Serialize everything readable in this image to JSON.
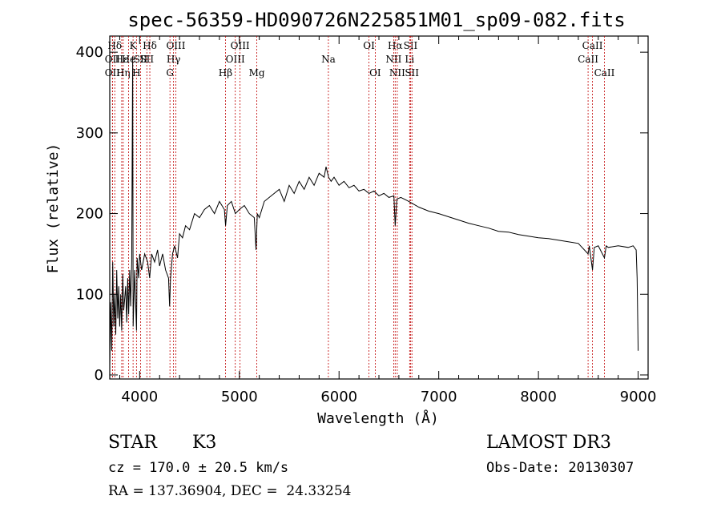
{
  "chart_data": {
    "type": "line",
    "title": "spec-56359-HD090726N225851M01_sp09-082.fits",
    "xlabel": "Wavelength (Å)",
    "ylabel": "Flux (relative)",
    "xlim": [
      3700,
      9100
    ],
    "ylim": [
      -5,
      420
    ],
    "x_ticks": [
      4000,
      5000,
      6000,
      7000,
      8000,
      9000
    ],
    "y_ticks": [
      0,
      100,
      200,
      300,
      400
    ],
    "grid": false,
    "series": [
      {
        "name": "flux",
        "points": [
          [
            3700,
            10
          ],
          [
            3710,
            90
          ],
          [
            3720,
            30
          ],
          [
            3730,
            140
          ],
          [
            3740,
            60
          ],
          [
            3750,
            100
          ],
          [
            3760,
            50
          ],
          [
            3770,
            130
          ],
          [
            3780,
            70
          ],
          [
            3790,
            110
          ],
          [
            3800,
            60
          ],
          [
            3810,
            100
          ],
          [
            3820,
            55
          ],
          [
            3830,
            125
          ],
          [
            3840,
            80
          ],
          [
            3850,
            95
          ],
          [
            3860,
            110
          ],
          [
            3870,
            65
          ],
          [
            3880,
            120
          ],
          [
            3890,
            75
          ],
          [
            3900,
            130
          ],
          [
            3910,
            85
          ],
          [
            3920,
            140
          ],
          [
            3930,
            395
          ],
          [
            3935,
            60
          ],
          [
            3950,
            130
          ],
          [
            3968,
            55
          ],
          [
            3975,
            145
          ],
          [
            3990,
            120
          ],
          [
            4000,
            150
          ],
          [
            4020,
            130
          ],
          [
            4050,
            150
          ],
          [
            4080,
            140
          ],
          [
            4100,
            120
          ],
          [
            4120,
            150
          ],
          [
            4150,
            140
          ],
          [
            4180,
            155
          ],
          [
            4200,
            135
          ],
          [
            4230,
            150
          ],
          [
            4260,
            130
          ],
          [
            4290,
            120
          ],
          [
            4300,
            85
          ],
          [
            4310,
            120
          ],
          [
            4330,
            150
          ],
          [
            4350,
            160
          ],
          [
            4380,
            145
          ],
          [
            4400,
            175
          ],
          [
            4430,
            170
          ],
          [
            4460,
            185
          ],
          [
            4500,
            180
          ],
          [
            4550,
            200
          ],
          [
            4600,
            195
          ],
          [
            4650,
            205
          ],
          [
            4700,
            210
          ],
          [
            4750,
            200
          ],
          [
            4800,
            215
          ],
          [
            4850,
            205
          ],
          [
            4862,
            185
          ],
          [
            4880,
            210
          ],
          [
            4920,
            215
          ],
          [
            4960,
            200
          ],
          [
            5000,
            205
          ],
          [
            5050,
            210
          ],
          [
            5100,
            200
          ],
          [
            5150,
            195
          ],
          [
            5167,
            155
          ],
          [
            5180,
            200
          ],
          [
            5200,
            195
          ],
          [
            5250,
            215
          ],
          [
            5300,
            220
          ],
          [
            5350,
            225
          ],
          [
            5400,
            230
          ],
          [
            5450,
            215
          ],
          [
            5500,
            235
          ],
          [
            5550,
            225
          ],
          [
            5600,
            240
          ],
          [
            5650,
            230
          ],
          [
            5700,
            245
          ],
          [
            5750,
            235
          ],
          [
            5800,
            250
          ],
          [
            5850,
            245
          ],
          [
            5870,
            258
          ],
          [
            5895,
            245
          ],
          [
            5920,
            240
          ],
          [
            5950,
            245
          ],
          [
            6000,
            235
          ],
          [
            6050,
            240
          ],
          [
            6100,
            232
          ],
          [
            6150,
            235
          ],
          [
            6200,
            228
          ],
          [
            6250,
            230
          ],
          [
            6300,
            225
          ],
          [
            6350,
            228
          ],
          [
            6400,
            222
          ],
          [
            6450,
            225
          ],
          [
            6500,
            220
          ],
          [
            6550,
            222
          ],
          [
            6563,
            185
          ],
          [
            6580,
            218
          ],
          [
            6620,
            220
          ],
          [
            6700,
            215
          ],
          [
            6800,
            208
          ],
          [
            6900,
            203
          ],
          [
            7000,
            200
          ],
          [
            7100,
            196
          ],
          [
            7200,
            192
          ],
          [
            7300,
            188
          ],
          [
            7400,
            185
          ],
          [
            7500,
            182
          ],
          [
            7600,
            178
          ],
          [
            7700,
            177
          ],
          [
            7800,
            174
          ],
          [
            7900,
            172
          ],
          [
            8000,
            170
          ],
          [
            8100,
            169
          ],
          [
            8200,
            167
          ],
          [
            8300,
            165
          ],
          [
            8400,
            163
          ],
          [
            8498,
            150
          ],
          [
            8510,
            160
          ],
          [
            8542,
            130
          ],
          [
            8560,
            158
          ],
          [
            8600,
            160
          ],
          [
            8662,
            145
          ],
          [
            8680,
            160
          ],
          [
            8700,
            158
          ],
          [
            8800,
            160
          ],
          [
            8900,
            158
          ],
          [
            8950,
            160
          ],
          [
            8980,
            155
          ],
          [
            8990,
            120
          ],
          [
            9000,
            30
          ]
        ]
      }
    ],
    "spectral_lines": [
      {
        "name": "Hδ",
        "wavelength": 3750,
        "row": 1
      },
      {
        "name": "OII",
        "wavelength": 3727,
        "row": 2
      },
      {
        "name": "OII",
        "wavelength": 3727,
        "row": 3
      },
      {
        "name": "Hε",
        "wavelength": 3820,
        "row": 2
      },
      {
        "name": "Hη",
        "wavelength": 3835,
        "row": 3
      },
      {
        "name": "K",
        "wavelength": 3934,
        "row": 1
      },
      {
        "name": "He",
        "wavelength": 3889,
        "row": 2
      },
      {
        "name": "H",
        "wavelength": 3968,
        "row": 3
      },
      {
        "name": "SII",
        "wavelength": 4010,
        "row": 2
      },
      {
        "name": "Hδ",
        "wavelength": 4102,
        "row": 1
      },
      {
        "name": "SII",
        "wavelength": 4072,
        "row": 2
      },
      {
        "name": "OIII",
        "wavelength": 4363,
        "row": 1
      },
      {
        "name": "Hγ",
        "wavelength": 4340,
        "row": 2
      },
      {
        "name": "G",
        "wavelength": 4304,
        "row": 3
      },
      {
        "name": "Hβ",
        "wavelength": 4861,
        "row": 3
      },
      {
        "name": "OIII",
        "wavelength": 5007,
        "row": 1
      },
      {
        "name": "OIII",
        "wavelength": 4959,
        "row": 2
      },
      {
        "name": "Mg",
        "wavelength": 5175,
        "row": 3
      },
      {
        "name": "Na",
        "wavelength": 5893,
        "row": 2
      },
      {
        "name": "OI",
        "wavelength": 6300,
        "row": 1
      },
      {
        "name": "OI",
        "wavelength": 6363,
        "row": 3
      },
      {
        "name": "Hα",
        "wavelength": 6563,
        "row": 1
      },
      {
        "name": "NII",
        "wavelength": 6548,
        "row": 2
      },
      {
        "name": "NII",
        "wavelength": 6584,
        "row": 3
      },
      {
        "name": "SII",
        "wavelength": 6717,
        "row": 1
      },
      {
        "name": "Li",
        "wavelength": 6708,
        "row": 2
      },
      {
        "name": "SII",
        "wavelength": 6731,
        "row": 3
      },
      {
        "name": "CaII",
        "wavelength": 8542,
        "row": 1
      },
      {
        "name": "CaII",
        "wavelength": 8498,
        "row": 2
      },
      {
        "name": "CaII",
        "wavelength": 8662,
        "row": 3
      }
    ]
  },
  "info": {
    "object_class": "STAR",
    "subclass": "K3",
    "survey": "LAMOST DR3",
    "cz": "cz = 170.0 ± 20.5 km/s",
    "obs_date": "Obs-Date: 20130307",
    "radec": "RA = 137.36904, DEC =  24.33254"
  }
}
